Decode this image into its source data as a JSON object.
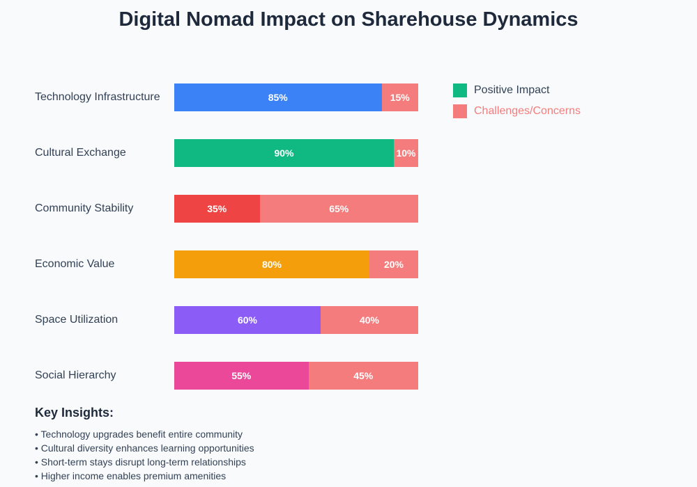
{
  "chart_data": {
    "type": "bar",
    "stacked": true,
    "orientation": "horizontal",
    "title": "Digital Nomad Impact on Sharehouse Dynamics",
    "categories": [
      "Technology Infrastructure",
      "Cultural Exchange",
      "Community Stability",
      "Economic Value",
      "Space Utilization",
      "Social Hierarchy"
    ],
    "series": [
      {
        "name": "Positive Impact",
        "values": [
          85,
          90,
          35,
          80,
          60,
          55
        ],
        "colors": [
          "#3b82f6",
          "#10b981",
          "#ef4444",
          "#f59e0b",
          "#8b5cf6",
          "#ec4899"
        ]
      },
      {
        "name": "Challenges/Concerns",
        "values": [
          15,
          10,
          65,
          20,
          40,
          45
        ],
        "color": "#f47c7c"
      }
    ],
    "labels": [
      [
        "85%",
        "15%"
      ],
      [
        "90%",
        "10%"
      ],
      [
        "35%",
        "65%"
      ],
      [
        "80%",
        "20%"
      ],
      [
        "60%",
        "40%"
      ],
      [
        "55%",
        "45%"
      ]
    ],
    "xlim": [
      0,
      100
    ],
    "legend_position": "right",
    "legend": [
      {
        "label": "Positive Impact",
        "color": "#10b981",
        "text_color": "#334155"
      },
      {
        "label": "Challenges/Concerns",
        "color": "#f47c7c",
        "text_color": "#f47c7c"
      }
    ]
  },
  "insights": {
    "title": "Key Insights:",
    "items": [
      "• Technology upgrades benefit entire community",
      "• Cultural diversity enhances learning opportunities",
      "• Short-term stays disrupt long-term relationships",
      "• Higher income enables premium amenities"
    ]
  }
}
